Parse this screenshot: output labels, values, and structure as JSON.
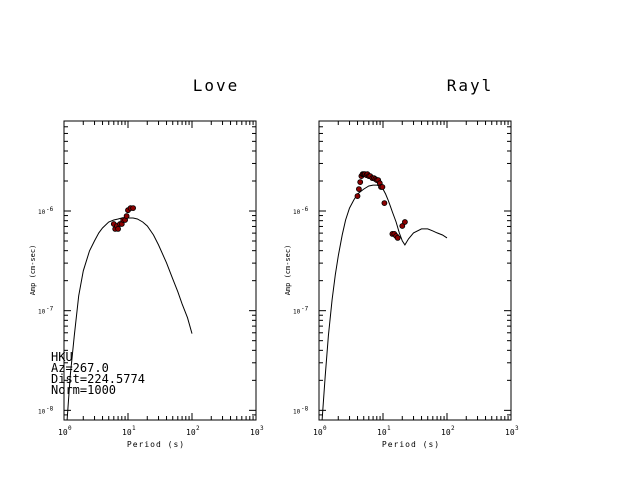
{
  "chart_data": [
    {
      "type": "line",
      "title": "Love",
      "xlabel": "Period (s)",
      "ylabel": "Amp (cm-sec)",
      "xscale": "log",
      "yscale": "log",
      "xlim": [
        1,
        1000
      ],
      "ylim": [
        8e-09,
        8e-06
      ],
      "x_ticks": [
        {
          "base": "10",
          "exp": "0"
        },
        {
          "base": "10",
          "exp": "1"
        },
        {
          "base": "10",
          "exp": "2"
        },
        {
          "base": "10",
          "exp": "3"
        }
      ],
      "y_ticks": [
        {
          "base": "10",
          "exp": "-8",
          "value": 1e-08
        },
        {
          "base": "10",
          "exp": "-7",
          "value": 1e-07
        },
        {
          "base": "10",
          "exp": "-6",
          "value": 1e-06
        }
      ],
      "annotations": [
        "HKU",
        "Az=267.0",
        "Dist=224.5774",
        "Norm=1000"
      ],
      "series": [
        {
          "style": "line",
          "x": [
            1.12,
            1.25,
            1.45,
            1.7,
            2.0,
            2.5,
            3.0,
            3.5,
            4.0,
            5.0,
            6.0,
            7.0,
            8.0,
            9.0,
            10.0,
            12.0,
            14.0,
            17.0,
            20.0,
            25.0,
            30.0,
            40.0,
            50.0,
            60.0,
            70.0,
            85.0,
            100.0
          ],
          "y": [
            8e-09,
            2.2e-08,
            5.62e-08,
            1.41e-07,
            2.51e-07,
            3.98e-07,
            5.01e-07,
            6.03e-07,
            6.76e-07,
            7.76e-07,
            8.13e-07,
            8.32e-07,
            8.51e-07,
            8.51e-07,
            8.51e-07,
            8.51e-07,
            8.32e-07,
            7.76e-07,
            7.08e-07,
            5.75e-07,
            4.57e-07,
            3.02e-07,
            2.09e-07,
            1.55e-07,
            1.17e-07,
            8.51e-08,
            5.89e-08
          ]
        },
        {
          "style": "points",
          "color": "#8b0000",
          "x": [
            6.0,
            6.3,
            6.7,
            7.0,
            7.5,
            8.0,
            8.4,
            9.0,
            9.5,
            10.0,
            11.0,
            12.0
          ],
          "y": [
            7.41e-07,
            6.61e-07,
            7.08e-07,
            6.61e-07,
            7.41e-07,
            7.41e-07,
            8.13e-07,
            8.13e-07,
            8.9e-07,
            1.02e-06,
            1.07e-06,
            1.07e-06
          ]
        }
      ]
    },
    {
      "type": "line",
      "title": "Rayl",
      "xlabel": "Period (s)",
      "ylabel": "Amp (cm-sec)",
      "xscale": "log",
      "yscale": "log",
      "xlim": [
        1,
        1000
      ],
      "ylim": [
        8e-09,
        8e-06
      ],
      "x_ticks": [
        {
          "base": "10",
          "exp": "0"
        },
        {
          "base": "10",
          "exp": "1"
        },
        {
          "base": "10",
          "exp": "2"
        },
        {
          "base": "10",
          "exp": "3"
        }
      ],
      "y_ticks": [
        {
          "base": "10",
          "exp": "-8",
          "value": 1e-08
        },
        {
          "base": "10",
          "exp": "-7",
          "value": 1e-07
        },
        {
          "base": "10",
          "exp": "-6",
          "value": 1e-06
        }
      ],
      "series": [
        {
          "style": "line",
          "x": [
            1.12,
            1.25,
            1.4,
            1.6,
            1.8,
            2.0,
            2.3,
            2.6,
            3.0,
            3.5,
            4.0,
            5.0,
            6.0,
            7.0,
            8.0,
            9.0,
            10.0,
            11.0,
            12.0,
            13.0,
            14.0,
            16.0,
            18.0,
            20.0,
            22.0,
            25.0,
            30.0,
            40.0,
            50.0,
            60.0,
            70.0,
            85.0,
            100.0
          ],
          "y": [
            8e-09,
            2.2e-08,
            5.62e-08,
            1.29e-07,
            2.29e-07,
            3.55e-07,
            5.75e-07,
            8.13e-07,
            1.07e-06,
            1.29e-06,
            1.48e-06,
            1.66e-06,
            1.78e-06,
            1.82e-06,
            1.82e-06,
            1.78e-06,
            1.66e-06,
            1.48e-06,
            1.29e-06,
            1.12e-06,
            9.77e-07,
            7.76e-07,
            6.03e-07,
            5.01e-07,
            4.57e-07,
            5.25e-07,
            6.03e-07,
            6.61e-07,
            6.61e-07,
            6.31e-07,
            6.03e-07,
            5.75e-07,
            5.37e-07
          ]
        },
        {
          "style": "points",
          "color": "#8b0000",
          "x": [
            4.0,
            4.2,
            4.4,
            4.6,
            4.8,
            5.0,
            5.2,
            5.5,
            5.7,
            6.0,
            6.3,
            6.8,
            7.2,
            7.6,
            8.0,
            8.4,
            8.9,
            9.3,
            9.8,
            10.5,
            14.0,
            15.0,
            16.0,
            17.0,
            20.0,
            22.0
          ],
          "y": [
            1.41e-06,
            1.66e-06,
            1.95e-06,
            2.24e-06,
            2.34e-06,
            2.34e-06,
            2.34e-06,
            2.29e-06,
            2.34e-06,
            2.24e-06,
            2.24e-06,
            2.14e-06,
            2.14e-06,
            2.09e-06,
            2.04e-06,
            2.04e-06,
            1.9e-06,
            1.74e-06,
            1.74e-06,
            1.2e-06,
            5.89e-07,
            5.89e-07,
            5.62e-07,
            5.37e-07,
            7.08e-07,
            7.76e-07
          ]
        }
      ]
    }
  ]
}
